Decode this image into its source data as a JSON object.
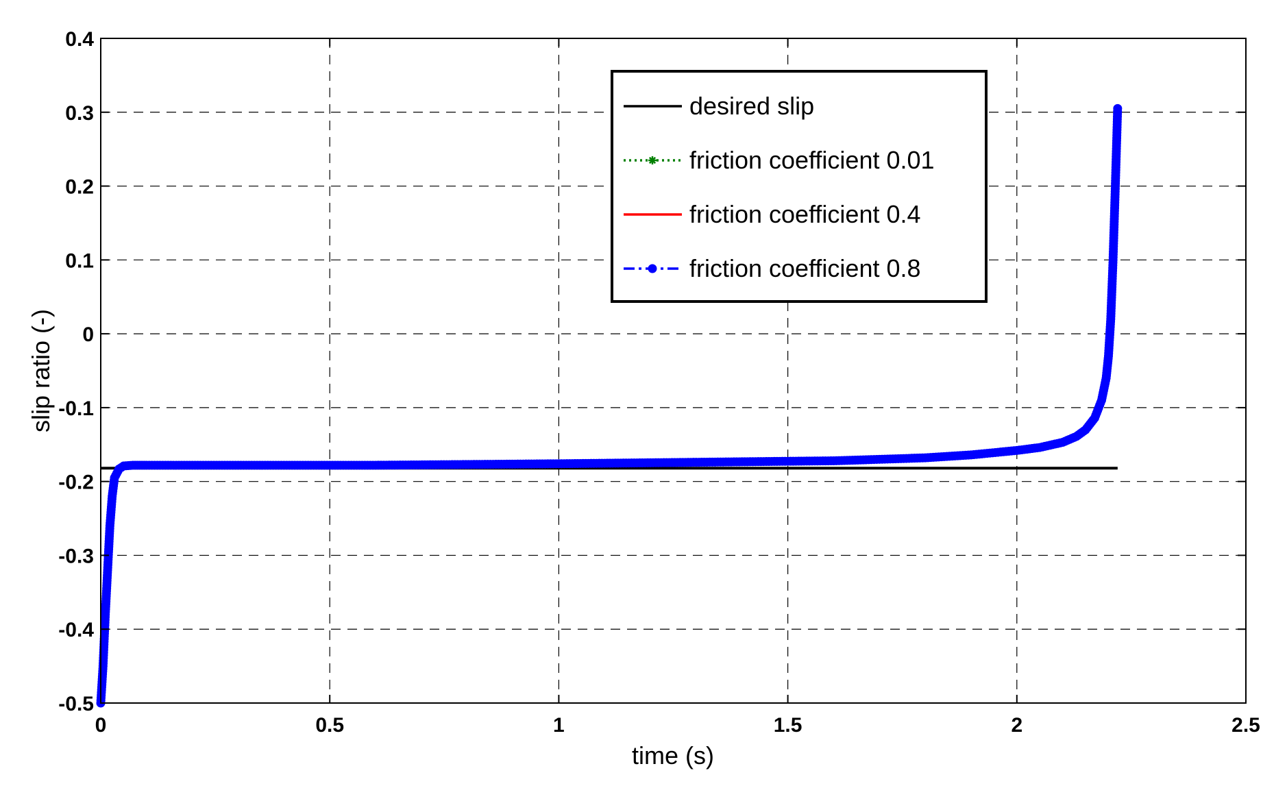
{
  "chart_data": {
    "type": "line",
    "title": "",
    "xlabel": "time (s)",
    "ylabel": "slip ratio (-)",
    "xlim": [
      0,
      2.5
    ],
    "ylim": [
      -0.5,
      0.4
    ],
    "xticks": [
      0,
      0.5,
      1,
      1.5,
      2,
      2.5
    ],
    "xtick_labels": [
      "0",
      "0.5",
      "1",
      "1.5",
      "2",
      "2.5"
    ],
    "yticks": [
      -0.5,
      -0.4,
      -0.3,
      -0.2,
      -0.1,
      0,
      0.1,
      0.2,
      0.3,
      0.4
    ],
    "ytick_labels": [
      "-0.5",
      "-0.4",
      "-0.3",
      "-0.2",
      "-0.1",
      "0",
      "0.1",
      "0.2",
      "0.3",
      "0.4"
    ],
    "grid": true,
    "legend_position": "top-center",
    "series": [
      {
        "name": "desired slip",
        "color": "#000000",
        "style": "solid",
        "marker": "none",
        "x": [
          0,
          2.22
        ],
        "y": [
          -0.182,
          -0.182
        ]
      },
      {
        "name": "friction coefficient 0.01",
        "color": "#008000",
        "style": "dotted",
        "marker": "star",
        "x": [
          0,
          0.005,
          0.01,
          0.015,
          0.02,
          0.025,
          0.03,
          0.04,
          0.05,
          0.07,
          0.1,
          0.3,
          0.6,
          1.0,
          1.3,
          1.6,
          1.8,
          1.9,
          2.0,
          2.05,
          2.1,
          2.13,
          2.15,
          2.17,
          2.185,
          2.195,
          2.2,
          2.205,
          2.21,
          2.215,
          2.22
        ],
        "y": [
          -0.5,
          -0.45,
          -0.38,
          -0.32,
          -0.26,
          -0.22,
          -0.195,
          -0.183,
          -0.179,
          -0.178,
          -0.178,
          -0.178,
          -0.178,
          -0.176,
          -0.174,
          -0.172,
          -0.168,
          -0.164,
          -0.158,
          -0.154,
          -0.147,
          -0.139,
          -0.13,
          -0.114,
          -0.09,
          -0.06,
          -0.03,
          0.02,
          0.1,
          0.2,
          0.305
        ]
      },
      {
        "name": "friction coefficient 0.4",
        "color": "#ff0000",
        "style": "solid",
        "marker": "none",
        "x": [
          0,
          0.005,
          0.01,
          0.015,
          0.02,
          0.025,
          0.03,
          0.04,
          0.05,
          0.07,
          0.1,
          0.3,
          0.6,
          1.0,
          1.3,
          1.6,
          1.8,
          1.9,
          2.0,
          2.05,
          2.1,
          2.13,
          2.15,
          2.17,
          2.185,
          2.195,
          2.2,
          2.205,
          2.21,
          2.215,
          2.22
        ],
        "y": [
          -0.5,
          -0.45,
          -0.38,
          -0.32,
          -0.26,
          -0.22,
          -0.195,
          -0.183,
          -0.179,
          -0.178,
          -0.178,
          -0.178,
          -0.178,
          -0.176,
          -0.174,
          -0.172,
          -0.168,
          -0.164,
          -0.158,
          -0.154,
          -0.147,
          -0.139,
          -0.13,
          -0.114,
          -0.09,
          -0.06,
          -0.03,
          0.02,
          0.1,
          0.2,
          0.305
        ]
      },
      {
        "name": "friction coefficient 0.8",
        "color": "#0000ff",
        "style": "dashdot",
        "marker": "circle",
        "x": [
          0,
          0.005,
          0.01,
          0.015,
          0.02,
          0.025,
          0.03,
          0.04,
          0.05,
          0.07,
          0.1,
          0.3,
          0.6,
          1.0,
          1.3,
          1.6,
          1.8,
          1.9,
          2.0,
          2.05,
          2.1,
          2.13,
          2.15,
          2.17,
          2.185,
          2.195,
          2.2,
          2.205,
          2.21,
          2.215,
          2.22
        ],
        "y": [
          -0.5,
          -0.45,
          -0.38,
          -0.32,
          -0.26,
          -0.22,
          -0.195,
          -0.183,
          -0.179,
          -0.178,
          -0.178,
          -0.178,
          -0.178,
          -0.176,
          -0.174,
          -0.172,
          -0.168,
          -0.164,
          -0.158,
          -0.154,
          -0.147,
          -0.139,
          -0.13,
          -0.114,
          -0.09,
          -0.06,
          -0.03,
          0.02,
          0.1,
          0.2,
          0.305
        ]
      }
    ]
  }
}
